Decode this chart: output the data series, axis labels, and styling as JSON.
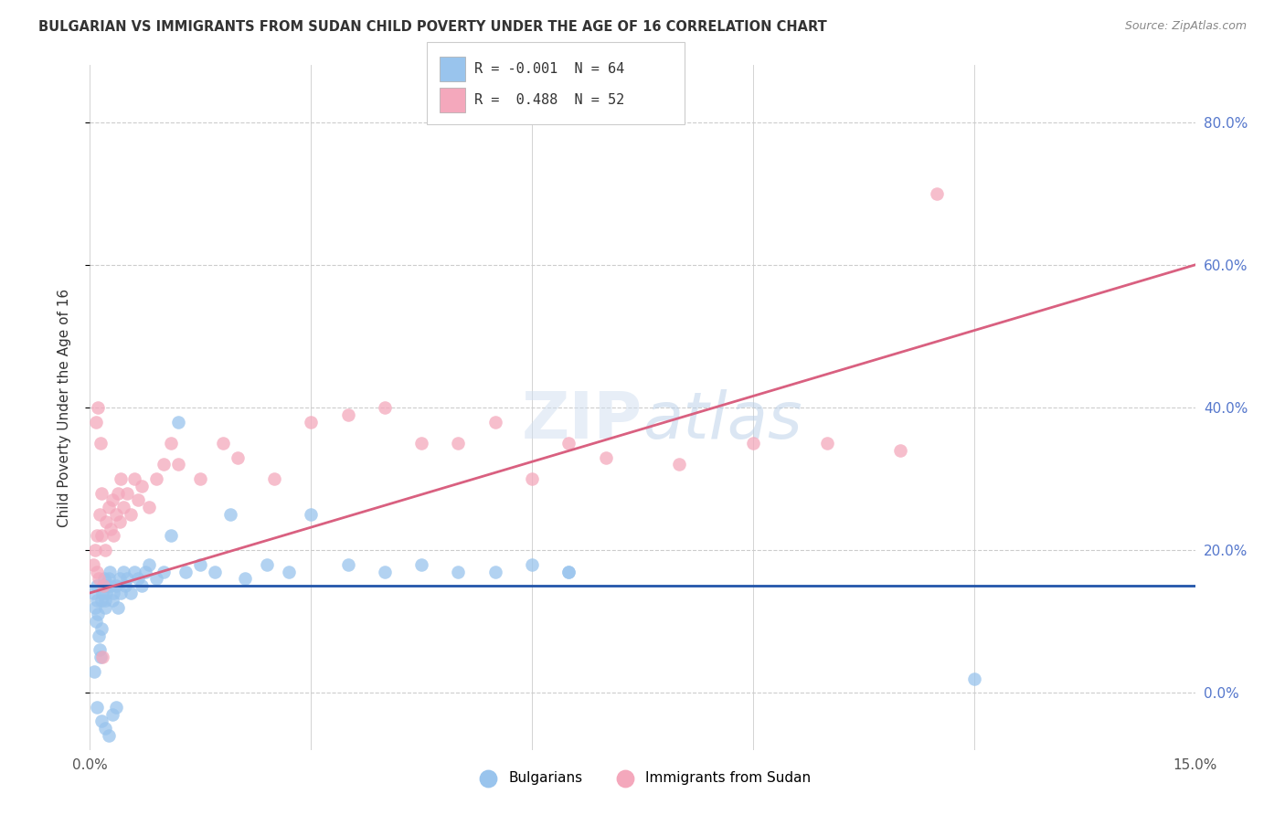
{
  "title": "BULGARIAN VS IMMIGRANTS FROM SUDAN CHILD POVERTY UNDER THE AGE OF 16 CORRELATION CHART",
  "source": "Source: ZipAtlas.com",
  "ylabel": "Child Poverty Under the Age of 16",
  "xlim": [
    0.0,
    15.0
  ],
  "ylim": [
    -8.0,
    88.0
  ],
  "yticks": [
    0,
    20,
    40,
    60,
    80
  ],
  "bg_color": "#ffffff",
  "grid_color": "#cccccc",
  "blue_color": "#99c4ed",
  "pink_color": "#f4a8bc",
  "blue_line_color": "#2255aa",
  "pink_line_color": "#d96080",
  "legend_r_blue": "-0.001",
  "legend_n_blue": "64",
  "legend_r_pink": "0.488",
  "legend_n_pink": "52",
  "legend_label_blue": "Bulgarians",
  "legend_label_pink": "Immigrants from Sudan",
  "blue_line_y0": 15.0,
  "blue_line_y1": 15.0,
  "pink_line_y0": 14.0,
  "pink_line_y1": 60.0,
  "blue_scatter_x": [
    0.05,
    0.07,
    0.08,
    0.09,
    0.1,
    0.11,
    0.12,
    0.13,
    0.14,
    0.15,
    0.16,
    0.17,
    0.18,
    0.19,
    0.2,
    0.21,
    0.22,
    0.23,
    0.25,
    0.27,
    0.28,
    0.3,
    0.32,
    0.35,
    0.38,
    0.4,
    0.42,
    0.45,
    0.48,
    0.5,
    0.55,
    0.6,
    0.65,
    0.7,
    0.75,
    0.8,
    0.9,
    1.0,
    1.1,
    1.2,
    1.3,
    1.5,
    1.7,
    1.9,
    2.1,
    2.4,
    2.7,
    3.0,
    3.5,
    4.0,
    4.5,
    5.0,
    5.5,
    6.0,
    6.5,
    0.06,
    0.09,
    0.15,
    0.2,
    0.25,
    0.3,
    0.35,
    12.0,
    6.5
  ],
  "blue_scatter_y": [
    14.0,
    12.0,
    10.0,
    13.0,
    15.0,
    11.0,
    8.0,
    6.0,
    5.0,
    9.0,
    13.0,
    14.0,
    15.0,
    16.0,
    12.0,
    13.0,
    14.0,
    15.0,
    16.0,
    17.0,
    15.0,
    13.0,
    14.0,
    15.0,
    12.0,
    16.0,
    14.0,
    17.0,
    15.0,
    16.0,
    14.0,
    17.0,
    16.0,
    15.0,
    17.0,
    18.0,
    16.0,
    17.0,
    22.0,
    38.0,
    17.0,
    18.0,
    17.0,
    25.0,
    16.0,
    18.0,
    17.0,
    25.0,
    18.0,
    17.0,
    18.0,
    17.0,
    17.0,
    18.0,
    17.0,
    3.0,
    -2.0,
    -4.0,
    -5.0,
    -6.0,
    -3.0,
    -2.0,
    2.0,
    17.0
  ],
  "pink_scatter_x": [
    0.05,
    0.07,
    0.09,
    0.1,
    0.12,
    0.13,
    0.15,
    0.16,
    0.18,
    0.2,
    0.22,
    0.25,
    0.28,
    0.3,
    0.32,
    0.35,
    0.38,
    0.4,
    0.42,
    0.45,
    0.5,
    0.55,
    0.6,
    0.65,
    0.7,
    0.8,
    0.9,
    1.0,
    1.1,
    1.2,
    1.5,
    1.8,
    2.0,
    2.5,
    3.0,
    3.5,
    4.0,
    4.5,
    5.0,
    5.5,
    6.0,
    6.5,
    7.0,
    8.0,
    9.0,
    10.0,
    11.0,
    0.08,
    0.11,
    0.14,
    0.17,
    11.5
  ],
  "pink_scatter_y": [
    18.0,
    20.0,
    22.0,
    17.0,
    16.0,
    25.0,
    28.0,
    22.0,
    15.0,
    20.0,
    24.0,
    26.0,
    23.0,
    27.0,
    22.0,
    25.0,
    28.0,
    24.0,
    30.0,
    26.0,
    28.0,
    25.0,
    30.0,
    27.0,
    29.0,
    26.0,
    30.0,
    32.0,
    35.0,
    32.0,
    30.0,
    35.0,
    33.0,
    30.0,
    38.0,
    39.0,
    40.0,
    35.0,
    35.0,
    38.0,
    30.0,
    35.0,
    33.0,
    32.0,
    35.0,
    35.0,
    34.0,
    38.0,
    40.0,
    35.0,
    5.0,
    70.0
  ]
}
